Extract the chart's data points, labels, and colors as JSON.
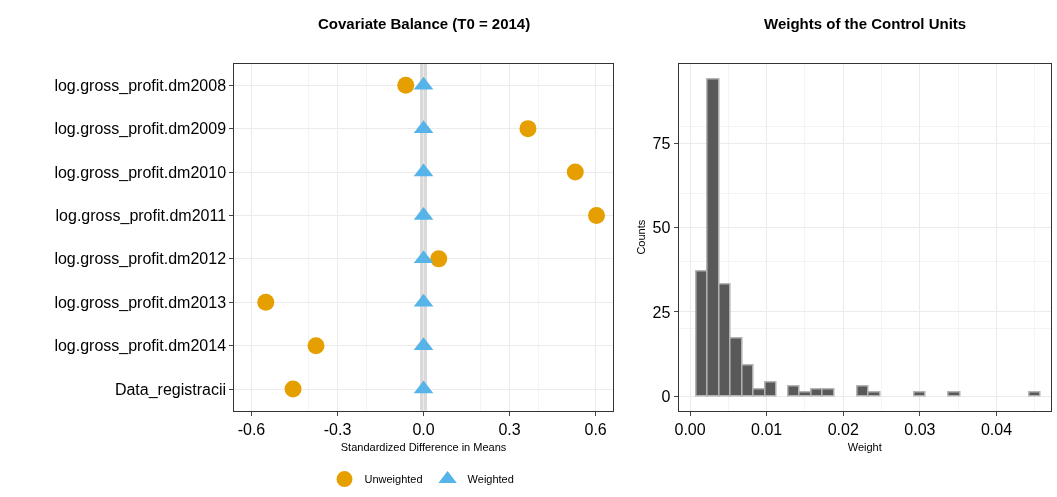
{
  "chart_data": [
    {
      "type": "scatter",
      "title": "Covariate Balance (T0 = 2014)",
      "xlabel": "Standardized Difference in Means",
      "categories": [
        "log.gross_profit.dm2008",
        "log.gross_profit.dm2009",
        "log.gross_profit.dm2010",
        "log.gross_profit.dm2011",
        "log.gross_profit.dm2012",
        "log.gross_profit.dm2013",
        "log.gross_profit.dm2014",
        "Data_registracii"
      ],
      "orientation": "horizontal",
      "series": [
        {
          "name": "Unweighted",
          "color": "#e69f00",
          "marker": "circle",
          "values": [
            -0.062,
            0.364,
            0.529,
            0.603,
            0.053,
            -0.55,
            -0.375,
            -0.455
          ]
        },
        {
          "name": "Weighted",
          "color": "#56b4e9",
          "marker": "triangle",
          "values": [
            0,
            0,
            0,
            0,
            0,
            0,
            0,
            0
          ]
        }
      ],
      "xlim": [
        -0.66,
        0.66
      ],
      "xticks": [
        -0.6,
        -0.3,
        {
          "value": 0,
          "label": "0.0"
        },
        0.3,
        0.6
      ],
      "ref_lines": [
        {
          "axis": "x",
          "value": 0,
          "color": "#d9d9d9"
        }
      ],
      "grid": true,
      "legend": "bottom"
    },
    {
      "type": "histogram",
      "title": "Weights of the Control Units",
      "xlabel": "Weight",
      "ylabel": "Counts",
      "color": "#595959",
      "bins": [
        0.0008,
        0.0023,
        0.0038,
        0.0053,
        0.0068,
        0.0083,
        0.0098,
        0.0113,
        0.0128,
        0.0143,
        0.0158,
        0.0173,
        0.0188,
        0.0203,
        0.0218,
        0.0233,
        0.0248,
        0.0263,
        0.0278,
        0.0293,
        0.0308,
        0.0323,
        0.0338,
        0.0353,
        0.0368,
        0.0383,
        0.0398,
        0.0413,
        0.0428,
        0.0443,
        0.0458
      ],
      "values": [
        37,
        94,
        33,
        17,
        9,
        2,
        4,
        0,
        3,
        1,
        2,
        2,
        0,
        0,
        3,
        1,
        0,
        0,
        0,
        1,
        0,
        0,
        1,
        0,
        0,
        0,
        0,
        0,
        0,
        1
      ],
      "xlim": [
        -0.0015,
        0.0471
      ],
      "xticks": [
        {
          "value": 0,
          "label": "0.00"
        },
        0.01,
        0.02,
        0.03,
        0.04
      ],
      "ylim": [
        -4.3,
        98.6
      ],
      "yticks": [
        0,
        25,
        50,
        75
      ],
      "grid": true
    }
  ]
}
